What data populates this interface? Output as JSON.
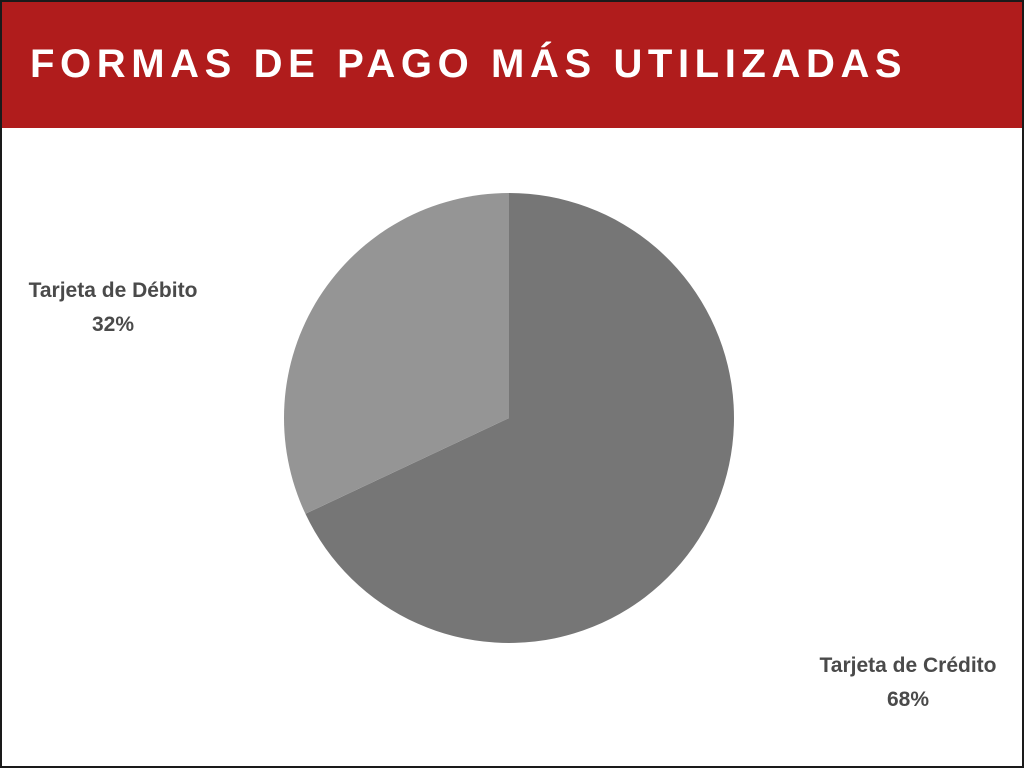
{
  "title": "FORMAS DE PAGO MÁS UTILIZADAS",
  "colors": {
    "header": "#b01c1c",
    "title_text": "#ffffff",
    "label_text": "#4a4a4a"
  },
  "chart_data": {
    "type": "pie",
    "start_angle_deg": 0,
    "direction": "clockwise",
    "slices": [
      {
        "label": "Tarjeta de Crédito",
        "value": 68,
        "display": "68%",
        "color": "#767676"
      },
      {
        "label": "Tarjeta de Débito",
        "value": 32,
        "display": "32%",
        "color": "#959595"
      }
    ],
    "legend": "none",
    "data_labels": "outside"
  }
}
